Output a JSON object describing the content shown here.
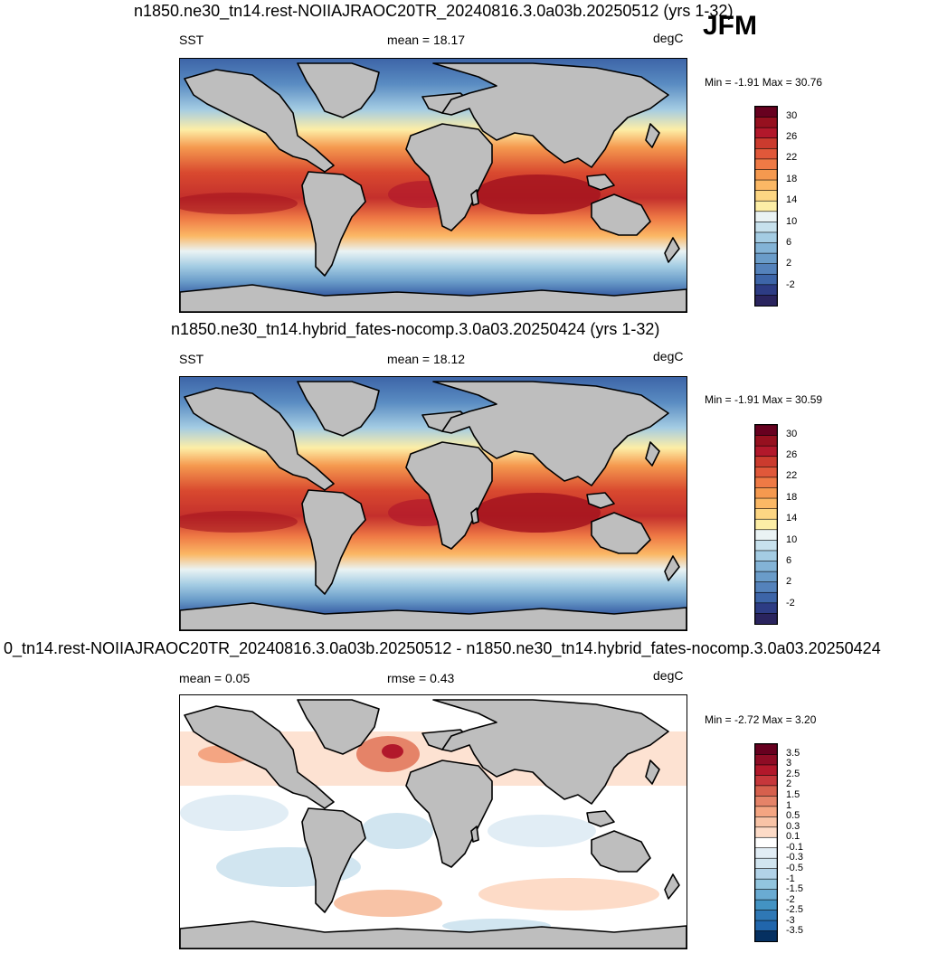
{
  "season": "JFM",
  "panels": [
    {
      "id": "p1",
      "title": "n1850.ne30_tn14.rest-NOIIAJRAOC20TR_20240816.3.0a03b.20250512 (yrs 1-32)",
      "left_label": "SST",
      "center_label": "mean =  18.17",
      "right_label": "degC",
      "min_max": "Min =  -1.91 Max =  30.76",
      "colorbar_labels": [
        "30",
        "26",
        "22",
        "18",
        "14",
        "10",
        "6",
        "2",
        "-2"
      ],
      "colorbar_colors": [
        "#67001f",
        "#96101f",
        "#b2182b",
        "#cb3b2e",
        "#e0583a",
        "#ef7a45",
        "#f5994f",
        "#fbb865",
        "#fdd683",
        "#fdeea6",
        "#eaf3f4",
        "#c7e1ed",
        "#a4cce3",
        "#83b3d6",
        "#6a9cc9",
        "#5482bb",
        "#3d65a8",
        "#2d3c84",
        "#2a245e"
      ]
    },
    {
      "id": "p2",
      "title": "n1850.ne30_tn14.hybrid_fates-nocomp.3.0a03.20250424 (yrs 1-32)",
      "left_label": "SST",
      "center_label": "mean =  18.12",
      "right_label": "degC",
      "min_max": "Min =  -1.91 Max =  30.59",
      "colorbar_labels": [
        "30",
        "26",
        "22",
        "18",
        "14",
        "10",
        "6",
        "2",
        "-2"
      ],
      "colorbar_colors": [
        "#67001f",
        "#96101f",
        "#b2182b",
        "#cb3b2e",
        "#e0583a",
        "#ef7a45",
        "#f5994f",
        "#fbb865",
        "#fdd683",
        "#fdeea6",
        "#eaf3f4",
        "#c7e1ed",
        "#a4cce3",
        "#83b3d6",
        "#6a9cc9",
        "#5482bb",
        "#3d65a8",
        "#2d3c84",
        "#2a245e"
      ]
    },
    {
      "id": "p3",
      "title": "0_tn14.rest-NOIIAJRAOC20TR_20240816.3.0a03b.20250512 - n1850.ne30_tn14.hybrid_fates-nocomp.3.0a03.20250424",
      "left_label": "mean =   0.05",
      "center_label": "rmse =   0.43",
      "right_label": "degC",
      "min_max": "Min =  -2.72 Max =   3.20",
      "colorbar_labels": [
        "3.5",
        "3",
        "2.5",
        "2",
        "1.5",
        "1",
        "0.5",
        "0.3",
        "0.1",
        "-0.1",
        "-0.3",
        "-0.5",
        "-1",
        "-1.5",
        "-2",
        "-2.5",
        "-3",
        "-3.5"
      ],
      "colorbar_colors": [
        "#67001f",
        "#8e0c25",
        "#b2182b",
        "#c6373b",
        "#d6604d",
        "#e58368",
        "#f4a582",
        "#f8c3a6",
        "#fddbc7",
        "#ffffff",
        "#e1edf5",
        "#d1e5f0",
        "#b2d3e8",
        "#92c5de",
        "#6aabd2",
        "#4393c3",
        "#2f78b5",
        "#2166ac",
        "#053061"
      ]
    }
  ],
  "layer_colors": {
    "land": "#bebebe",
    "coast": "#000000"
  }
}
